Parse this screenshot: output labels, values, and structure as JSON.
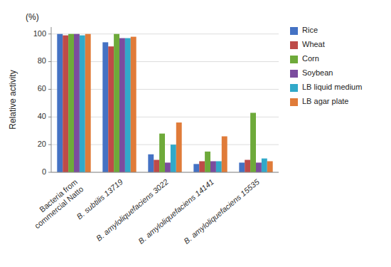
{
  "chart_data": {
    "type": "bar",
    "categories": [
      "Bacteria from\ncommercial Natto",
      "B. subtilis 13719",
      "B. amyloliquefaciens 3022",
      "B. amyloliquefaciens 14141",
      "B. amyloliquefaciens 15535"
    ],
    "series": [
      {
        "name": "Rice",
        "color": "#4472C4",
        "values": [
          100,
          94,
          13,
          6,
          7
        ]
      },
      {
        "name": "Wheat",
        "color": "#BE4B48",
        "values": [
          99,
          91,
          9,
          8,
          9
        ]
      },
      {
        "name": "Corn",
        "color": "#6EAA3A",
        "values": [
          100,
          100,
          28,
          15,
          43
        ]
      },
      {
        "name": "Soybean",
        "color": "#7B4C9E",
        "values": [
          100,
          97,
          7,
          8,
          7
        ]
      },
      {
        "name": "LB liquid medium",
        "color": "#31A9C9",
        "values": [
          99,
          97,
          20,
          8,
          10
        ]
      },
      {
        "name": "LB agar plate",
        "color": "#E07B39",
        "values": [
          100,
          98,
          36,
          26,
          8
        ]
      }
    ],
    "ylabel": "Relative activity",
    "annotations": [
      "(%)"
    ],
    "ylim": [
      0,
      105
    ],
    "yticks": [
      0,
      20,
      40,
      60,
      80,
      100
    ],
    "grid": true,
    "legend": "right"
  }
}
